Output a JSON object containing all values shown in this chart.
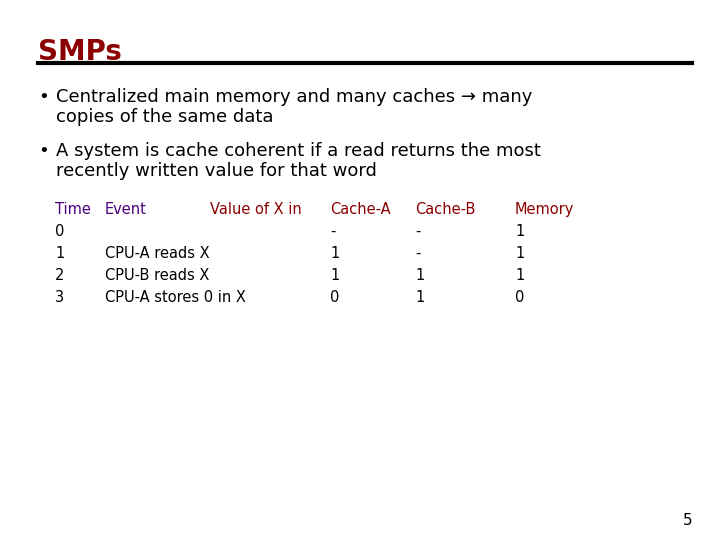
{
  "title": "SMPs",
  "title_color": "#8B0000",
  "background_color": "#FFFFFF",
  "bullet_color": "#000000",
  "bullet1_line1": "Centralized main memory and many caches → many",
  "bullet1_line2": "copies of the same data",
  "bullet2_line1": "A system is cache coherent if a read returns the most",
  "bullet2_line2": "recently written value for that word",
  "table_header": [
    "Time",
    "Event",
    "Value of X in",
    "Cache-A",
    "Cache-B",
    "Memory"
  ],
  "table_header_colors": [
    "#4B0082",
    "#4B0082",
    "#8B0000",
    "#8B0000",
    "#8B0000",
    "#8B0000"
  ],
  "table_rows": [
    [
      "0",
      "",
      "-",
      "-",
      "1"
    ],
    [
      "1",
      "CPU-A reads X",
      "1",
      "-",
      "1"
    ],
    [
      "2",
      "CPU-B reads X",
      "1",
      "1",
      "1"
    ],
    [
      "3",
      "CPU-A stores 0 in X",
      "0",
      "1",
      "0"
    ]
  ],
  "page_number": "5",
  "body_text_color": "#000000",
  "table_text_color": "#000000",
  "title_fontsize": 20,
  "body_fontsize": 13,
  "table_fontsize": 10.5
}
